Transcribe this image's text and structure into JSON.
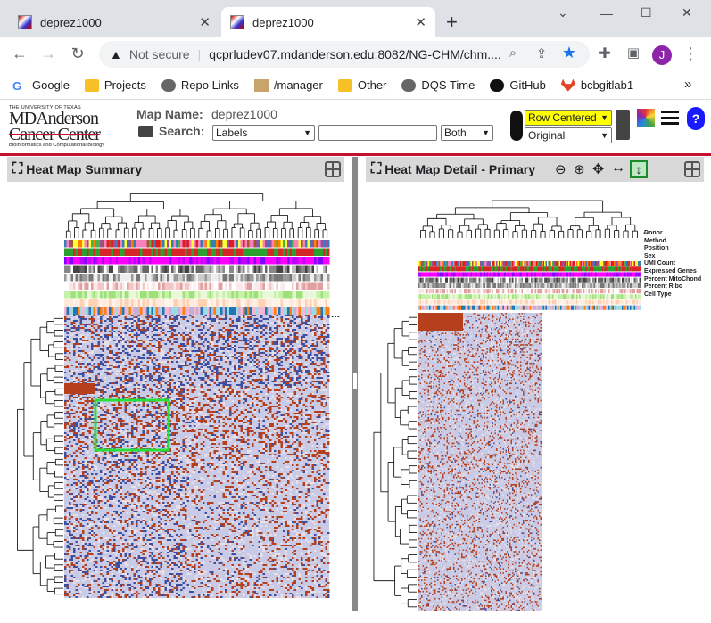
{
  "browser": {
    "tabs": [
      {
        "title": "deprez1000",
        "active": false
      },
      {
        "title": "deprez1000",
        "active": true
      }
    ],
    "new_tab": "+",
    "window_controls": {
      "minimize": "—",
      "maximize": "☐",
      "close": "✕"
    },
    "security_label": "Not secure",
    "url": "qcprludev07.mdanderson.edu:8082/NG-CHM/chm....",
    "profile_initial": "J",
    "bookmarks": [
      "Google",
      "Projects",
      "Repo Links",
      "/manager",
      "Other",
      "DQS Time",
      "GitHub",
      "bcbgitlab1"
    ],
    "bookmarks_more": "»"
  },
  "app": {
    "logo": {
      "line1": "THE UNIVERSITY OF TEXAS",
      "line2": "MDAnderson",
      "line3": "Cancer Center",
      "line4": "Bioinformatics and Computational Biology"
    },
    "map_name_label": "Map Name:",
    "map_name": "deprez1000",
    "search_label": "Search:",
    "search_scope": "Labels",
    "search_value": "",
    "search_axis": "Both",
    "color_scheme": "Row Centered",
    "data_layer": "Original",
    "help": "?"
  },
  "summary_panel": {
    "title": "Heat Map Summary",
    "more": "..."
  },
  "detail_panel": {
    "title": "Heat Map Detail - Primary",
    "covariates": [
      "Donor",
      "Method",
      "Position",
      "Sex",
      "UMI Count",
      "Expressed Genes",
      "Percent MitoChond",
      "Percent Ribo",
      "Cell Type"
    ],
    "more": "..."
  },
  "colors": {
    "accent_red": "#c8102e",
    "selection_green": "#27e03a",
    "heat_red": "#b4401e",
    "heat_blue": "#3f4fa0",
    "heat_neutral": "#c9cbe6"
  }
}
